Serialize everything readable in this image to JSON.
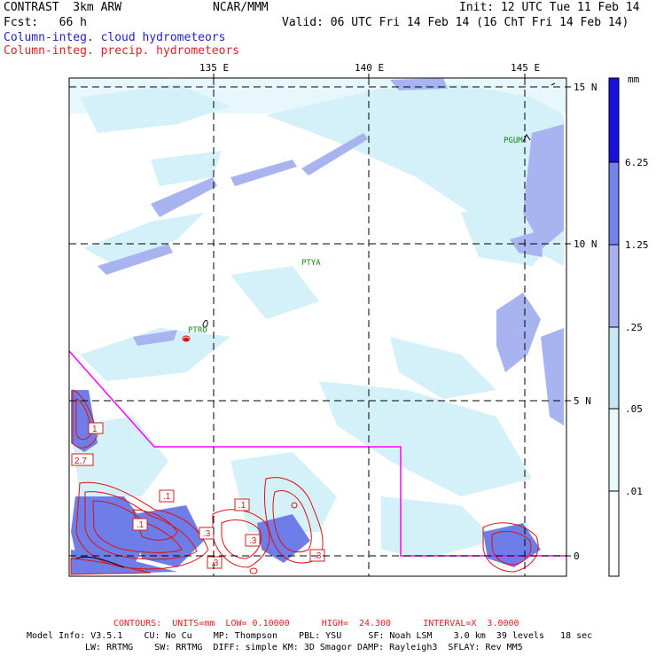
{
  "header": {
    "left_line1": "CONTRAST  3km ARW",
    "center_line1": "NCAR/MMM",
    "right_line1": "Init: 12 UTC Tue 11 Feb 14",
    "left_line2": "Fcst:   66 h",
    "right_line2": "Valid: 06 UTC Fri 14 Feb 14 (16 ChT Fri 14 Feb 14)",
    "legend_cloud": "Column-integ. cloud hydrometeors",
    "legend_precip": "Column-integ. precip. hydrometeors"
  },
  "colors": {
    "cloud_text": "#2222cc",
    "precip_text": "#dd2222",
    "magenta_line": "#ff00ff",
    "station_text": "#118811"
  },
  "map": {
    "lon_labels": [
      "135 E",
      "140 E",
      "145 E"
    ],
    "lat_labels": [
      "15 N",
      "10 N",
      "5 N",
      "0"
    ],
    "stations": [
      "PGUM",
      "PTYA",
      "PTRO"
    ],
    "contour_labels": [
      "1",
      "2.7",
      ".1",
      ".1",
      ".1",
      ".3",
      ".3",
      ".3",
      ".3"
    ]
  },
  "colorbar": {
    "unit": "mm",
    "labels": [
      "6.25",
      "1.25",
      ".25",
      ".05",
      ".01"
    ],
    "colors": [
      "#ffffff",
      "#e8f8fc",
      "#c6e8f4",
      "#a8b0f0",
      "#7484ea",
      "#3d4ee6",
      "#1a10e0"
    ]
  },
  "footer": {
    "contours_line": "CONTOURS:  UNITS=mm  LOW= 0.10000      HIGH=  24.300      INTERVAL=X  3.0000",
    "model_line1": "Model Info: V3.5.1    CU: No Cu    MP: Thompson    PBL: YSU     SF: Noah LSM    3.0 km  39 levels   18 sec",
    "model_line2": "LW: RRTMG    SW: RRTMG  DIFF: simple KM: 3D Smagor DAMP: Rayleigh3  SFLAY: Rev MM5"
  }
}
